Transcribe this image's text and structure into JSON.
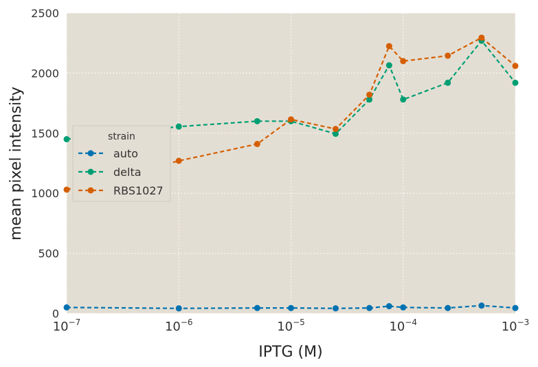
{
  "chart_data": {
    "type": "line",
    "title": "",
    "xlabel": "IPTG (M)",
    "ylabel": "mean pixel intensity",
    "x_scale": "log",
    "xlim": [
      1e-07,
      0.001
    ],
    "ylim": [
      0,
      2500
    ],
    "grid": true,
    "background": "#e3ded3",
    "x_ticks": [
      {
        "value": 1e-07,
        "base": "10",
        "exp": "−7"
      },
      {
        "value": 1e-06,
        "base": "10",
        "exp": "−6"
      },
      {
        "value": 1e-05,
        "base": "10",
        "exp": "−5"
      },
      {
        "value": 0.0001,
        "base": "10",
        "exp": "−4"
      },
      {
        "value": 0.001,
        "base": "10",
        "exp": "−3"
      }
    ],
    "y_ticks": [
      {
        "value": 0,
        "label": "0"
      },
      {
        "value": 500,
        "label": "500"
      },
      {
        "value": 1000,
        "label": "1000"
      },
      {
        "value": 1500,
        "label": "1500"
      },
      {
        "value": 2000,
        "label": "2000"
      },
      {
        "value": 2500,
        "label": "2500"
      }
    ],
    "legend": {
      "title": "strain",
      "placement": "center-left"
    },
    "x": [
      1e-07,
      1e-06,
      5e-06,
      1e-05,
      2.5e-05,
      5e-05,
      7.5e-05,
      0.0001,
      0.00025,
      0.0005,
      0.001
    ],
    "series": [
      {
        "name": "auto",
        "color": "#0072b2",
        "values": [
          50,
          42,
          45,
          45,
          42,
          45,
          60,
          50,
          45,
          65,
          45
        ]
      },
      {
        "name": "delta",
        "color": "#009e73",
        "values": [
          1450,
          1555,
          1600,
          1600,
          1495,
          1780,
          2065,
          1780,
          1920,
          2270,
          1920
        ]
      },
      {
        "name": "RBS1027",
        "color": "#d55e00",
        "values": [
          1030,
          1270,
          1410,
          1615,
          1535,
          1820,
          2225,
          2100,
          2145,
          2295,
          2060
        ]
      }
    ]
  }
}
